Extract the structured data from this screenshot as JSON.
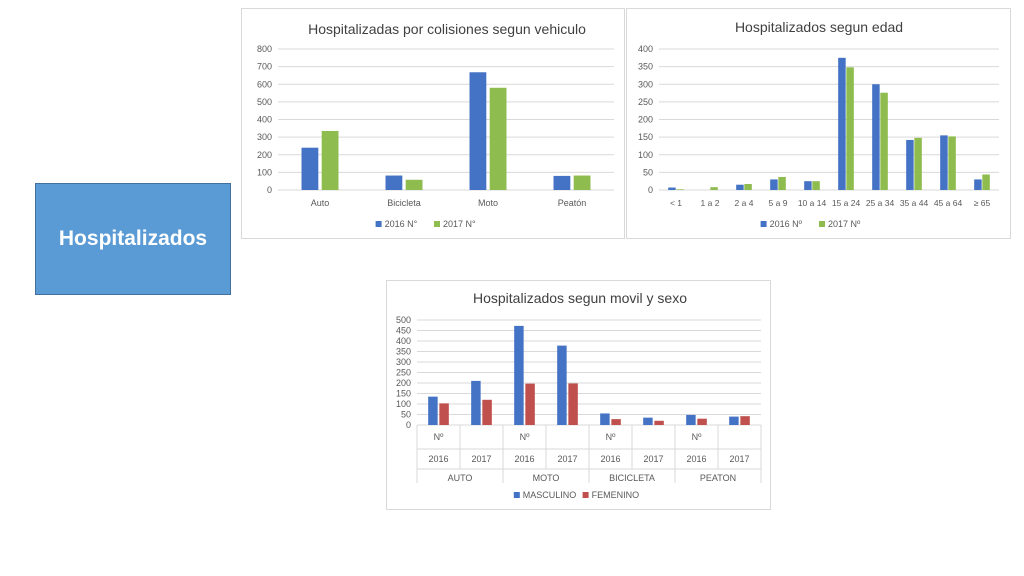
{
  "section_title": "Hospitalizados",
  "chart_data": [
    {
      "type": "bar",
      "title": "Hospitalizadas por colisiones segun vehiculo",
      "xlabel": "",
      "ylabel": "",
      "ylim": [
        0,
        800
      ],
      "yticks": [
        "0",
        "100",
        "200",
        "300",
        "400",
        "500",
        "600",
        "700",
        "800"
      ],
      "grid": true,
      "legend_position": "bottom",
      "categories": [
        "Auto",
        "Bicicleta",
        "Moto",
        "Peatón"
      ],
      "series": [
        {
          "name": "2016 N°",
          "color": "#4472c4",
          "values": [
            240,
            82,
            668,
            80
          ]
        },
        {
          "name": "2017 N°",
          "color": "#8fbc4f",
          "values": [
            335,
            58,
            580,
            82
          ]
        }
      ]
    },
    {
      "type": "bar",
      "title": "Hospitalizados segun edad",
      "xlabel": "",
      "ylabel": "",
      "ylim": [
        0,
        400
      ],
      "yticks": [
        "0",
        "50",
        "100",
        "150",
        "200",
        "250",
        "300",
        "350",
        "400"
      ],
      "grid": true,
      "legend_position": "bottom",
      "categories": [
        "< 1",
        "1 a 2",
        "2 a 4",
        "5 a 9",
        "10 a 14",
        "15 a 24",
        "25 a 34",
        "35 a 44",
        "45 a 64",
        "≥ 65"
      ],
      "series": [
        {
          "name": "2016 Nº",
          "color": "#4472c4",
          "values": [
            7,
            0,
            15,
            30,
            25,
            375,
            300,
            142,
            155,
            30
          ]
        },
        {
          "name": "2017 Nº",
          "color": "#8fbc4f",
          "values": [
            2,
            8,
            17,
            37,
            25,
            348,
            276,
            148,
            152,
            44
          ]
        }
      ]
    },
    {
      "type": "bar",
      "title": "Hospitalizados segun movil y sexo",
      "xlabel": "",
      "ylabel": "",
      "ylim": [
        0,
        500
      ],
      "yticks": [
        "0",
        "50",
        "100",
        "150",
        "200",
        "250",
        "300",
        "350",
        "400",
        "450",
        "500"
      ],
      "grid": true,
      "legend_position": "bottom",
      "categories": [
        {
          "label1": "Nº",
          "label2": "2016"
        },
        {
          "label1": "",
          "label2": "2017"
        },
        {
          "label1": "Nº",
          "label2": "2016"
        },
        {
          "label1": "",
          "label2": "2017"
        },
        {
          "label1": "Nº",
          "label2": "2016"
        },
        {
          "label1": "",
          "label2": "2017"
        },
        {
          "label1": "Nº",
          "label2": "2016"
        },
        {
          "label1": "",
          "label2": "2017"
        }
      ],
      "groups": [
        "AUTO",
        "MOTO",
        "BICICLETA",
        "PEATON"
      ],
      "series": [
        {
          "name": "MASCULINO",
          "color": "#4472c4",
          "values": [
            135,
            210,
            472,
            378,
            55,
            35,
            48,
            40
          ]
        },
        {
          "name": "FEMENINO",
          "color": "#c0504d",
          "values": [
            103,
            120,
            197,
            198,
            28,
            20,
            30,
            42
          ]
        }
      ]
    }
  ]
}
